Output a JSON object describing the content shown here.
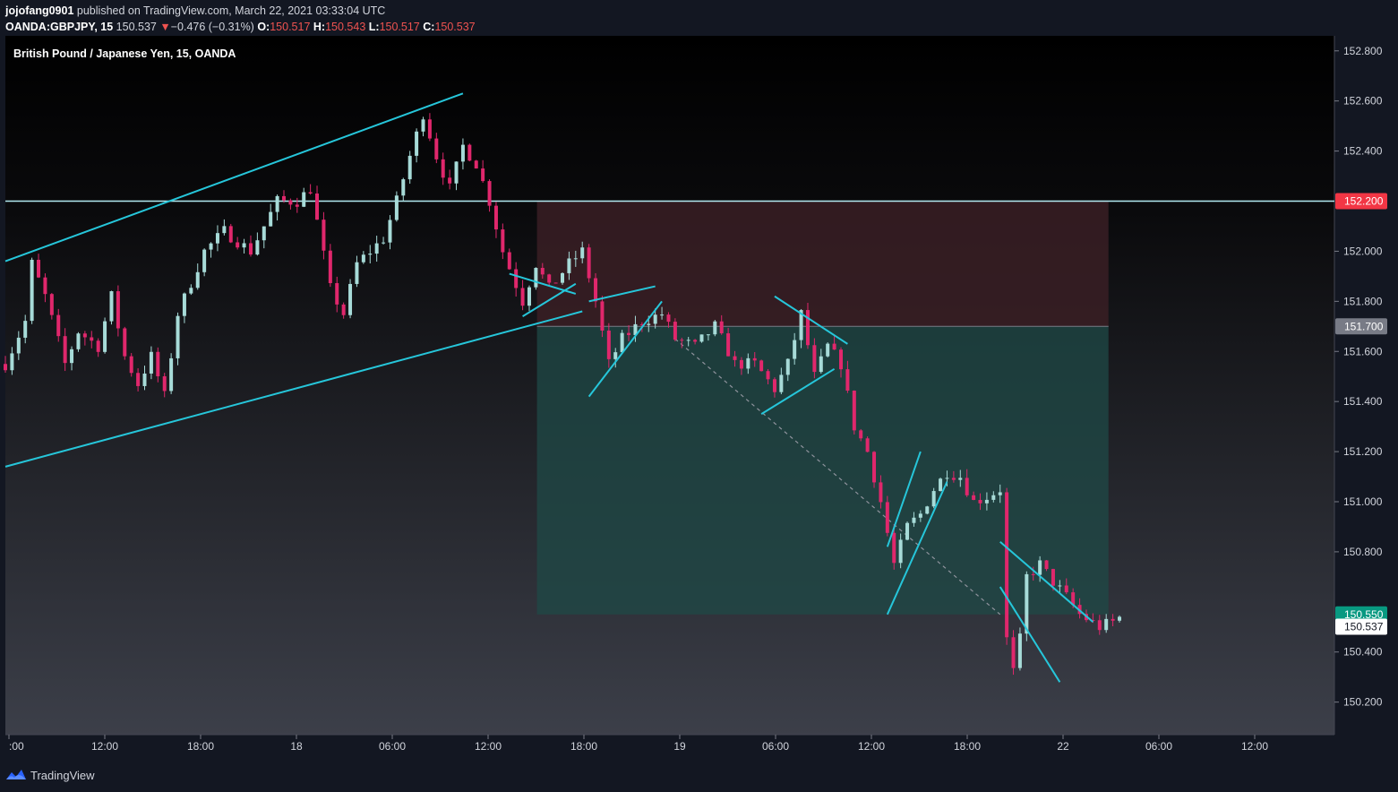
{
  "header": {
    "author": "jojofang0901",
    "published_text": "published on TradingView.com, March 22, 2021 03:33:04 UTC",
    "symbol": "OANDA:GBPJPY, 15",
    "last": "150.537",
    "change_arrow": "▼",
    "change": "−0.476 (−0.31%)",
    "o_label": "O:",
    "o": "150.517",
    "h_label": "H:",
    "h": "150.543",
    "l_label": "L:",
    "l": "150.517",
    "c_label": "C:",
    "c": "150.537"
  },
  "footer": {
    "brand": "TradingView",
    "logo_icon": "tradingview-logo-icon"
  },
  "colors": {
    "up": "#a7dbd8",
    "down": "#e0276c",
    "trendline": "#26c6da",
    "hline": "#b2ebf2",
    "loss_zone": "#3a1f25",
    "profit_zone": "#1f4a47",
    "price_tag_stop": "#f23645",
    "price_tag_target": "#089981",
    "price_tag_entry": "#787b86"
  },
  "chart_data": {
    "type": "candlestick",
    "title": "British Pound / Japanese Yen, 15, OANDA",
    "x_ticks": [
      ":00",
      "12:00",
      "18:00",
      "18",
      "06:00",
      "12:00",
      "18:00",
      "19",
      "06:00",
      "12:00",
      "18:00",
      "22",
      "06:00",
      "12:00"
    ],
    "y_ticks": [
      "152.800",
      "152.600",
      "152.400",
      "152.000",
      "151.800",
      "151.600",
      "151.400",
      "151.200",
      "151.000",
      "150.800",
      "150.400",
      "150.200"
    ],
    "ylim": [
      150.07,
      152.86
    ],
    "price_tags": [
      {
        "label": "152.200",
        "value": 152.2,
        "kind": "stop"
      },
      {
        "label": "151.700",
        "value": 151.7,
        "kind": "entry"
      },
      {
        "label": "150.550",
        "value": 150.55,
        "kind": "target"
      },
      {
        "label": "150.537",
        "value": 150.537,
        "kind": "last"
      }
    ],
    "horizontal_line": 152.2,
    "position": {
      "entry": 151.7,
      "stop": 152.2,
      "target": 150.55,
      "start_index": 0.4,
      "end_index": 0.83
    },
    "price_path": [
      [
        0,
        151.55
      ],
      [
        3,
        151.72
      ],
      [
        4,
        151.95
      ],
      [
        6,
        151.82
      ],
      [
        9,
        151.55
      ],
      [
        11,
        151.68
      ],
      [
        14,
        151.62
      ],
      [
        16,
        151.82
      ],
      [
        18,
        151.58
      ],
      [
        20,
        151.47
      ],
      [
        22,
        151.58
      ],
      [
        24,
        151.42
      ],
      [
        26,
        151.75
      ],
      [
        30,
        152.0
      ],
      [
        33,
        152.08
      ],
      [
        37,
        152.0
      ],
      [
        41,
        152.2
      ],
      [
        44,
        152.2
      ],
      [
        46,
        152.25
      ],
      [
        49,
        151.85
      ],
      [
        51,
        151.75
      ],
      [
        53,
        151.95
      ],
      [
        57,
        152.05
      ],
      [
        59,
        152.2
      ],
      [
        61,
        152.38
      ],
      [
        63,
        152.55
      ],
      [
        65,
        152.38
      ],
      [
        67,
        152.25
      ],
      [
        69,
        152.42
      ],
      [
        71,
        152.35
      ],
      [
        73,
        152.2
      ],
      [
        75,
        152.0
      ],
      [
        78,
        151.8
      ],
      [
        80,
        151.95
      ],
      [
        82,
        151.85
      ],
      [
        85,
        151.95
      ],
      [
        87,
        152.0
      ],
      [
        89,
        151.8
      ],
      [
        91,
        151.55
      ],
      [
        93,
        151.65
      ],
      [
        96,
        151.72
      ],
      [
        99,
        151.75
      ],
      [
        101,
        151.65
      ],
      [
        104,
        151.62
      ],
      [
        107,
        151.7
      ],
      [
        110,
        151.55
      ],
      [
        113,
        151.55
      ],
      [
        116,
        151.45
      ],
      [
        118,
        151.55
      ],
      [
        120,
        151.75
      ],
      [
        122,
        151.5
      ],
      [
        124,
        151.62
      ],
      [
        126,
        151.55
      ],
      [
        128,
        151.3
      ],
      [
        130,
        151.2
      ],
      [
        132,
        151.0
      ],
      [
        134,
        150.75
      ],
      [
        136,
        150.9
      ],
      [
        138,
        150.95
      ],
      [
        140,
        151.05
      ],
      [
        142,
        151.12
      ],
      [
        144,
        151.1
      ],
      [
        146,
        151.0
      ],
      [
        148,
        151.02
      ],
      [
        150,
        151.05
      ],
      [
        151,
        150.45
      ],
      [
        152,
        150.32
      ],
      [
        153,
        150.45
      ],
      [
        154,
        150.7
      ],
      [
        156,
        150.75
      ],
      [
        158,
        150.68
      ],
      [
        160,
        150.62
      ],
      [
        162,
        150.55
      ],
      [
        165,
        150.5
      ],
      [
        167,
        150.52
      ],
      [
        168,
        150.537
      ]
    ],
    "trendlines": [
      [
        [
          0,
          151.96
        ],
        [
          69,
          152.63
        ]
      ],
      [
        [
          0,
          151.14
        ],
        [
          87,
          151.76
        ]
      ],
      [
        [
          76,
          151.91
        ],
        [
          86,
          151.83
        ]
      ],
      [
        [
          78,
          151.74
        ],
        [
          86,
          151.87
        ]
      ],
      [
        [
          88,
          151.8
        ],
        [
          98,
          151.86
        ]
      ],
      [
        [
          88,
          151.42
        ],
        [
          99,
          151.8
        ]
      ],
      [
        [
          116,
          151.82
        ],
        [
          127,
          151.63
        ]
      ],
      [
        [
          114,
          151.35
        ],
        [
          125,
          151.53
        ]
      ],
      [
        [
          133,
          150.82
        ],
        [
          138,
          151.2
        ]
      ],
      [
        [
          133,
          150.55
        ],
        [
          142,
          151.08
        ]
      ],
      [
        [
          150,
          150.84
        ],
        [
          164,
          150.52
        ]
      ],
      [
        [
          150,
          150.66
        ],
        [
          159,
          150.28
        ]
      ]
    ]
  }
}
